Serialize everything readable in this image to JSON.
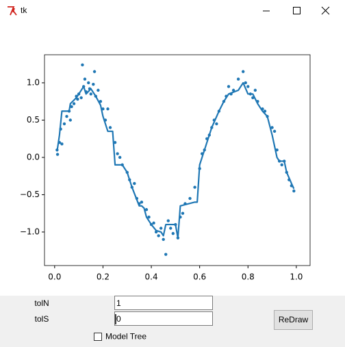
{
  "window": {
    "title": "tk"
  },
  "chart_data": {
    "type": "scatter",
    "color": "#1f77b4",
    "xlim": [
      -0.042,
      1.057
    ],
    "ylim": [
      -1.45,
      1.376
    ],
    "xticks": [
      {
        "value": 0,
        "label": "0.0"
      },
      {
        "value": 0.2,
        "label": "0.2"
      },
      {
        "value": 0.4,
        "label": "0.4"
      },
      {
        "value": 0.6,
        "label": "0.6"
      },
      {
        "value": 0.8,
        "label": "0.8"
      },
      {
        "value": 1,
        "label": "1.0"
      }
    ],
    "yticks": [
      {
        "value": -1,
        "label": "−1.0"
      },
      {
        "value": -0.5,
        "label": "−0.5"
      },
      {
        "value": 0,
        "label": "0.0"
      },
      {
        "value": 0.5,
        "label": "0.5"
      },
      {
        "value": 1,
        "label": "1.0"
      }
    ],
    "points": {
      "x": [
        0.01,
        0.012,
        0.02,
        0.025,
        0.03,
        0.04,
        0.05,
        0.06,
        0.065,
        0.07,
        0.08,
        0.09,
        0.095,
        0.1,
        0.11,
        0.115,
        0.12,
        0.125,
        0.13,
        0.14,
        0.145,
        0.15,
        0.16,
        0.165,
        0.17,
        0.18,
        0.19,
        0.2,
        0.21,
        0.22,
        0.23,
        0.25,
        0.26,
        0.27,
        0.28,
        0.3,
        0.31,
        0.32,
        0.33,
        0.34,
        0.35,
        0.36,
        0.38,
        0.39,
        0.4,
        0.41,
        0.42,
        0.43,
        0.44,
        0.45,
        0.46,
        0.47,
        0.48,
        0.49,
        0.5,
        0.51,
        0.52,
        0.53,
        0.54,
        0.56,
        0.58,
        0.6,
        0.61,
        0.62,
        0.63,
        0.64,
        0.65,
        0.66,
        0.67,
        0.68,
        0.7,
        0.71,
        0.72,
        0.73,
        0.74,
        0.76,
        0.78,
        0.79,
        0.8,
        0.81,
        0.82,
        0.83,
        0.84,
        0.86,
        0.87,
        0.88,
        0.9,
        0.91,
        0.92,
        0.93,
        0.94,
        0.95,
        0.96,
        0.97,
        0.98,
        0.99
      ],
      "y": [
        0.1,
        0.04,
        0.2,
        0.38,
        0.18,
        0.45,
        0.55,
        0.62,
        0.5,
        0.68,
        0.72,
        0.82,
        0.78,
        0.85,
        0.8,
        1.24,
        0.95,
        1.05,
        0.88,
        1.0,
        0.92,
        0.85,
        0.98,
        1.15,
        0.82,
        0.9,
        0.75,
        0.65,
        0.5,
        0.65,
        0.4,
        0.2,
        0.05,
        0.0,
        -0.1,
        -0.2,
        -0.3,
        -0.4,
        -0.35,
        -0.55,
        -0.62,
        -0.6,
        -0.7,
        -0.8,
        -0.9,
        -0.88,
        -1.0,
        -1.05,
        -0.95,
        -1.1,
        -1.3,
        -0.85,
        -0.95,
        -1.02,
        -0.9,
        -1.08,
        -0.8,
        -0.75,
        -0.62,
        -0.55,
        -0.4,
        -0.15,
        0.05,
        0.1,
        0.25,
        0.3,
        0.4,
        0.5,
        0.45,
        0.62,
        0.75,
        0.82,
        0.95,
        0.85,
        0.9,
        1.05,
        1.15,
        1.0,
        0.95,
        0.85,
        0.8,
        0.9,
        0.75,
        0.65,
        0.62,
        0.55,
        0.4,
        0.35,
        0.1,
        -0.05,
        -0.1,
        -0.05,
        -0.2,
        -0.3,
        -0.38,
        -0.45
      ]
    },
    "line": {
      "x": [
        0.01,
        0.02,
        0.03,
        0.06,
        0.065,
        0.09,
        0.1,
        0.12,
        0.13,
        0.15,
        0.17,
        0.19,
        0.2,
        0.22,
        0.24,
        0.25,
        0.28,
        0.3,
        0.32,
        0.35,
        0.36,
        0.37,
        0.38,
        0.4,
        0.42,
        0.44,
        0.45,
        0.46,
        0.48,
        0.5,
        0.51,
        0.52,
        0.58,
        0.59,
        0.6,
        0.62,
        0.65,
        0.68,
        0.7,
        0.72,
        0.76,
        0.78,
        0.8,
        0.82,
        0.84,
        0.86,
        0.88,
        0.9,
        0.92,
        0.93,
        0.95,
        0.96,
        0.98,
        0.99
      ],
      "y": [
        0.08,
        0.3,
        0.62,
        0.62,
        0.72,
        0.8,
        0.85,
        0.95,
        0.85,
        0.92,
        0.82,
        0.7,
        0.55,
        0.35,
        0.35,
        -0.1,
        -0.1,
        -0.2,
        -0.4,
        -0.65,
        -0.65,
        -0.68,
        -0.8,
        -0.9,
        -0.98,
        -1.0,
        -1.05,
        -0.9,
        -0.9,
        -0.9,
        -1.08,
        -0.65,
        -0.6,
        -0.6,
        -0.1,
        0.1,
        0.4,
        0.62,
        0.75,
        0.85,
        0.9,
        1.0,
        0.85,
        0.85,
        0.72,
        0.62,
        0.55,
        0.3,
        0.0,
        -0.05,
        -0.05,
        -0.2,
        -0.35,
        -0.42
      ]
    }
  },
  "controls": {
    "fields": [
      {
        "label": "tolN",
        "value": "1"
      },
      {
        "label": "tolS",
        "value": "0"
      }
    ],
    "button": "ReDraw",
    "checkbox": {
      "label": "Model Tree",
      "checked": false
    }
  }
}
